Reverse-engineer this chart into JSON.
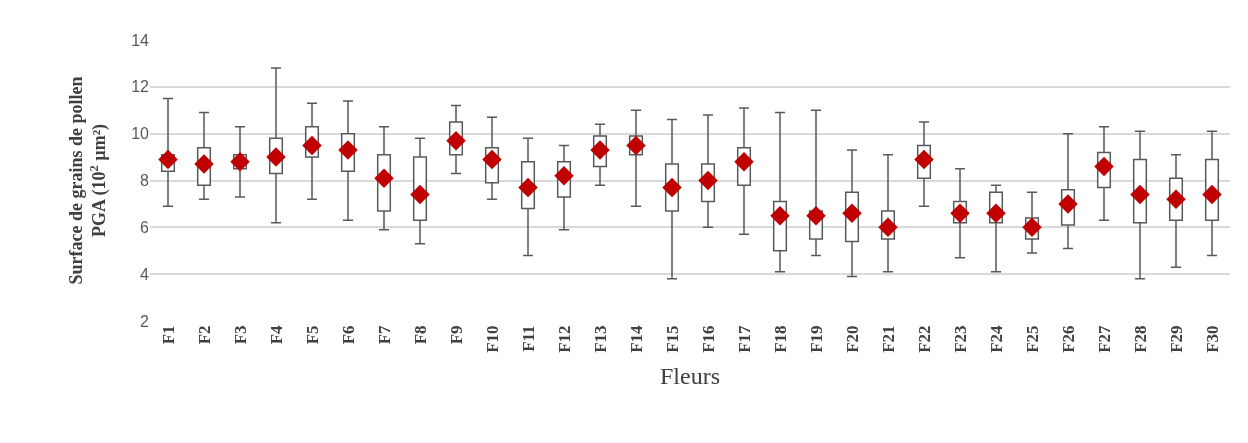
{
  "chart_data": {
    "type": "box",
    "xlabel": "Fleurs",
    "ylabel": "Surface de grains de pollen\nPGA (10$^{2}$ µm²)",
    "categories": [
      "F1",
      "F2",
      "F3",
      "F4",
      "F5",
      "F6",
      "F7",
      "F8",
      "F9",
      "F10",
      "F11",
      "F12",
      "F13",
      "F14",
      "F15",
      "F16",
      "F17",
      "F18",
      "F19",
      "F20",
      "F21",
      "F22",
      "F23",
      "F24",
      "F25",
      "F26",
      "F27",
      "F28",
      "F29",
      "F30"
    ],
    "ylim": [
      2,
      14
    ],
    "yticks": [
      2,
      4,
      6,
      8,
      10,
      12,
      14
    ],
    "grid": "y",
    "series": [
      {
        "color": "#595959",
        "boxes": [
          {
            "low": 6.9,
            "q1": 8.4,
            "median": 8.9,
            "q3": 9.1,
            "high": 11.5
          },
          {
            "low": 7.2,
            "q1": 7.8,
            "median": 8.7,
            "q3": 9.4,
            "high": 10.9
          },
          {
            "low": 7.3,
            "q1": 8.5,
            "median": 8.8,
            "q3": 9.1,
            "high": 10.3
          },
          {
            "low": 6.2,
            "q1": 8.3,
            "median": 9.0,
            "q3": 9.8,
            "high": 12.8
          },
          {
            "low": 7.2,
            "q1": 9.0,
            "median": 9.5,
            "q3": 10.3,
            "high": 11.3
          },
          {
            "low": 6.3,
            "q1": 8.4,
            "median": 9.3,
            "q3": 10.0,
            "high": 11.4
          },
          {
            "low": 5.9,
            "q1": 6.7,
            "median": 8.1,
            "q3": 9.1,
            "high": 10.3
          },
          {
            "low": 5.3,
            "q1": 6.3,
            "median": 7.4,
            "q3": 9.0,
            "high": 9.8
          },
          {
            "low": 8.3,
            "q1": 9.1,
            "median": 9.7,
            "q3": 10.5,
            "high": 11.2
          },
          {
            "low": 7.2,
            "q1": 7.9,
            "median": 8.9,
            "q3": 9.4,
            "high": 10.7
          },
          {
            "low": 4.8,
            "q1": 6.8,
            "median": 7.7,
            "q3": 8.8,
            "high": 9.8
          },
          {
            "low": 5.9,
            "q1": 7.3,
            "median": 8.2,
            "q3": 8.8,
            "high": 9.5
          },
          {
            "low": 7.8,
            "q1": 8.6,
            "median": 9.3,
            "q3": 9.9,
            "high": 10.4
          },
          {
            "low": 6.9,
            "q1": 9.1,
            "median": 9.5,
            "q3": 9.9,
            "high": 11.0
          },
          {
            "low": 3.8,
            "q1": 6.7,
            "median": 7.7,
            "q3": 8.7,
            "high": 10.6
          },
          {
            "low": 6.0,
            "q1": 7.1,
            "median": 8.0,
            "q3": 8.7,
            "high": 10.8
          },
          {
            "low": 5.7,
            "q1": 7.8,
            "median": 8.8,
            "q3": 9.4,
            "high": 11.1
          },
          {
            "low": 4.1,
            "q1": 5.0,
            "median": 6.5,
            "q3": 7.1,
            "high": 10.9
          },
          {
            "low": 4.8,
            "q1": 5.5,
            "median": 6.5,
            "q3": 6.7,
            "high": 11.0
          },
          {
            "low": 3.9,
            "q1": 5.4,
            "median": 6.6,
            "q3": 7.5,
            "high": 9.3
          },
          {
            "low": 4.1,
            "q1": 5.5,
            "median": 6.0,
            "q3": 6.7,
            "high": 9.1
          },
          {
            "low": 6.9,
            "q1": 8.1,
            "median": 8.9,
            "q3": 9.5,
            "high": 10.5
          },
          {
            "low": 4.7,
            "q1": 6.2,
            "median": 6.6,
            "q3": 7.1,
            "high": 8.5
          },
          {
            "low": 4.1,
            "q1": 6.2,
            "median": 6.6,
            "q3": 7.5,
            "high": 7.8
          },
          {
            "low": 4.9,
            "q1": 5.5,
            "median": 6.0,
            "q3": 6.4,
            "high": 7.5
          },
          {
            "low": 5.1,
            "q1": 6.1,
            "median": 7.0,
            "q3": 7.6,
            "high": 10.0
          },
          {
            "low": 6.3,
            "q1": 7.7,
            "median": 8.6,
            "q3": 9.2,
            "high": 10.3
          },
          {
            "low": 3.8,
            "q1": 6.2,
            "median": 7.4,
            "q3": 8.9,
            "high": 10.1
          },
          {
            "low": 4.3,
            "q1": 6.3,
            "median": 7.2,
            "q3": 8.1,
            "high": 9.1
          },
          {
            "low": 4.8,
            "q1": 6.3,
            "median": 7.4,
            "q3": 8.9,
            "high": 10.1
          }
        ]
      },
      {
        "type": "scatter",
        "color": "#c00000",
        "marker": "diamond",
        "x": [
          "F1",
          "F2",
          "F3",
          "F4",
          "F5",
          "F6",
          "F7",
          "F8",
          "F9",
          "F10",
          "F11",
          "F12",
          "F13",
          "F14",
          "F15",
          "F16",
          "F17",
          "F18",
          "F19",
          "F20",
          "F21",
          "F22",
          "F23",
          "F24",
          "F25",
          "F26",
          "F27",
          "F28",
          "F29",
          "F30"
        ],
        "values": [
          8.9,
          8.7,
          8.8,
          9.0,
          9.5,
          9.3,
          8.1,
          7.4,
          9.7,
          8.9,
          7.7,
          8.2,
          9.3,
          9.5,
          7.7,
          8.0,
          8.8,
          6.5,
          6.5,
          6.6,
          6.0,
          8.9,
          6.6,
          6.6,
          6.0,
          7.0,
          8.6,
          7.4,
          7.2,
          7.4
        ]
      }
    ]
  }
}
